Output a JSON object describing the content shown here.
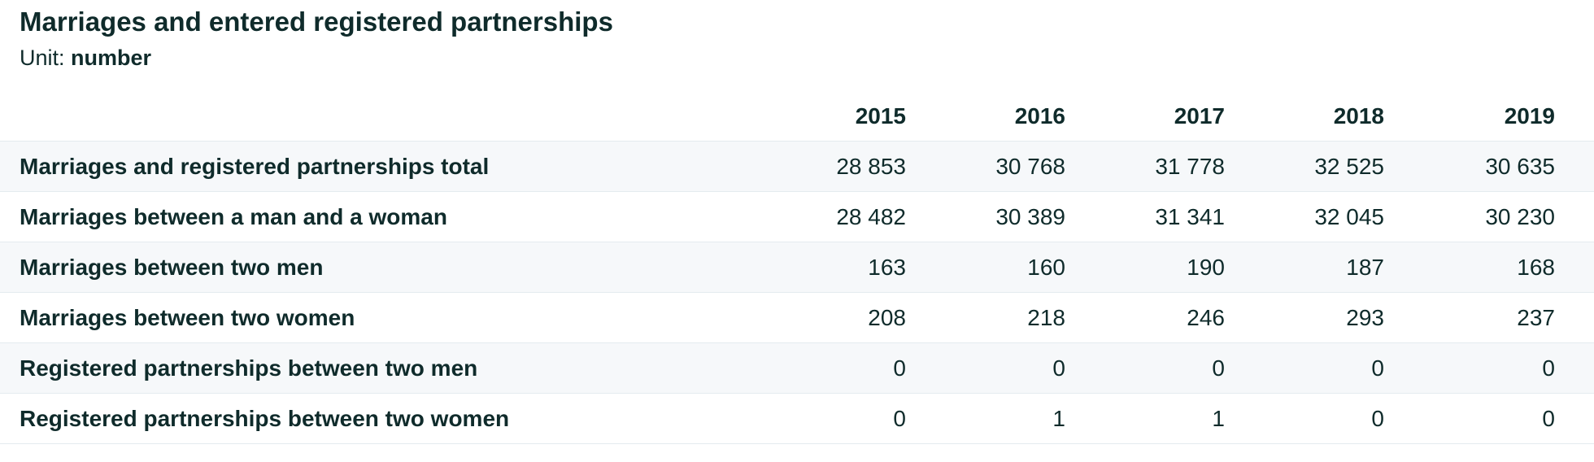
{
  "header": {
    "title": "Marriages and entered registered partnerships",
    "unit_label": "Unit:",
    "unit": "number"
  },
  "table": {
    "columns": [
      "2015",
      "2016",
      "2017",
      "2018",
      "2019"
    ],
    "rows": [
      [
        "Marriages and registered partnerships total",
        "28 853",
        "30 768",
        "31 778",
        "32 525",
        "30 635"
      ],
      [
        "Marriages between a man and a woman",
        "28 482",
        "30 389",
        "31 341",
        "32 045",
        "30 230"
      ],
      [
        "Marriages between two men",
        "163",
        "160",
        "190",
        "187",
        "168"
      ],
      [
        "Marriages between two women",
        "208",
        "218",
        "246",
        "293",
        "237"
      ],
      [
        "Registered partnerships between two men",
        "0",
        "0",
        "0",
        "0",
        "0"
      ],
      [
        "Registered partnerships between two women",
        "0",
        "1",
        "1",
        "0",
        "0"
      ]
    ]
  }
}
